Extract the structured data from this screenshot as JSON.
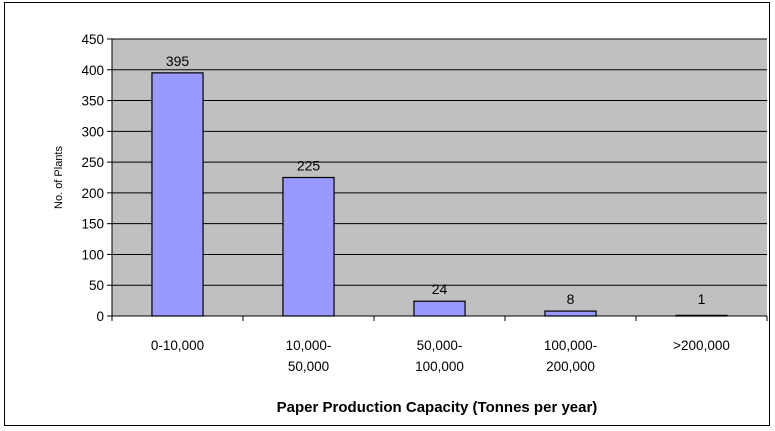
{
  "chart_data": {
    "type": "bar",
    "title": "",
    "xlabel": "Paper Production Capacity (Tonnes per year)",
    "ylabel": "No. of Plants",
    "categories": [
      [
        "0-10,000"
      ],
      [
        "10,000-",
        "50,000"
      ],
      [
        "50,000-",
        "100,000"
      ],
      [
        "100,000-",
        "200,000"
      ],
      [
        ">200,000"
      ]
    ],
    "values": [
      395,
      225,
      24,
      8,
      1
    ],
    "data_labels": [
      "395",
      "225",
      "24",
      "8",
      "1"
    ],
    "yticks": [
      "0",
      "50",
      "100",
      "150",
      "200",
      "250",
      "300",
      "350",
      "400",
      "450"
    ],
    "ylim": [
      0,
      450
    ],
    "grid": "horizontal",
    "legend": "none",
    "colors": {
      "plot_background": "#c0c0c0",
      "bar_fill": "#9999ff",
      "bar_stroke": "#000000",
      "gridline": "#000000"
    }
  }
}
